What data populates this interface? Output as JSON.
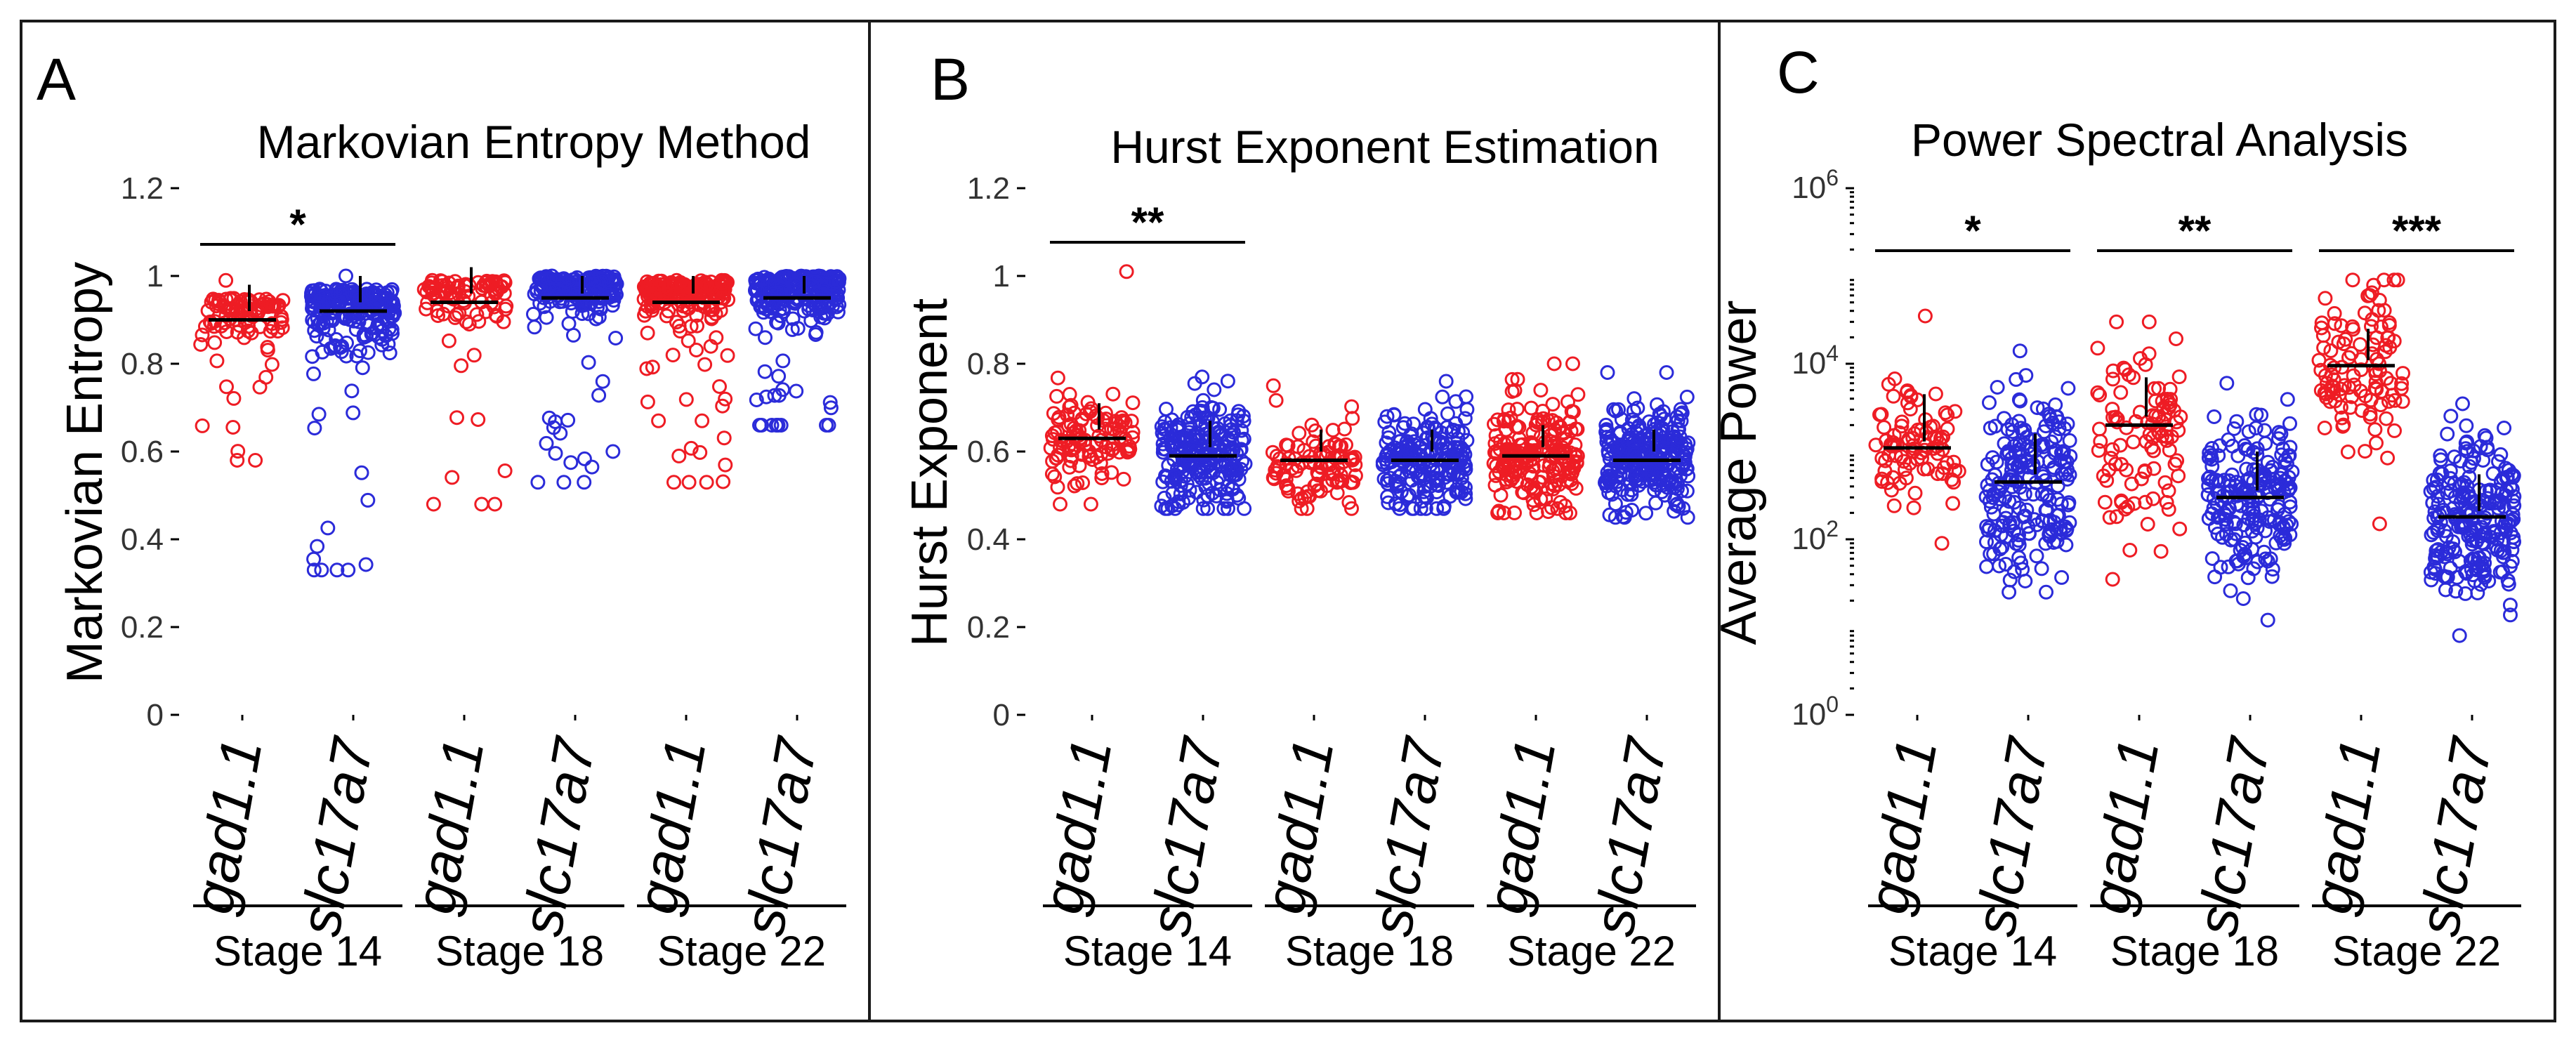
{
  "colors": {
    "red": "#ee1c24",
    "blue": "#2b2bd9"
  },
  "chart_data": [
    {
      "panel": "A",
      "type": "scatter",
      "title": "Markovian Entropy Method",
      "ylabel": "Markovian Entropy",
      "yscale": "linear",
      "ylim": [
        0,
        1.2
      ],
      "yticks": [
        0,
        0.2,
        0.4,
        0.6,
        0.8,
        1,
        1.2
      ],
      "ytick_labels": [
        "0",
        "0.2",
        "0.4",
        "0.6",
        "0.8",
        "1",
        "1.2"
      ],
      "groups": [
        {
          "category": "gad1.1",
          "stage": "Stage 14",
          "color": "red",
          "mean": 0.9,
          "err": [
            0.92,
            0.98
          ],
          "min": 0.58,
          "max": 0.99,
          "n": 95,
          "spread": 0.045
        },
        {
          "category": "slc17a7",
          "stage": "Stage 14",
          "color": "blue",
          "mean": 0.92,
          "err": [
            0.94,
            1.0
          ],
          "min": 0.33,
          "max": 1.0,
          "n": 230,
          "spread": 0.06
        },
        {
          "category": "gad1.1",
          "stage": "Stage 18",
          "color": "red",
          "mean": 0.94,
          "err": [
            0.96,
            1.02
          ],
          "min": 0.48,
          "max": 0.99,
          "n": 90,
          "spread": 0.045
        },
        {
          "category": "slc17a7",
          "stage": "Stage 18",
          "color": "blue",
          "mean": 0.95,
          "err": [
            0.96,
            1.0
          ],
          "min": 0.53,
          "max": 1.0,
          "n": 200,
          "spread": 0.04
        },
        {
          "category": "gad1.1",
          "stage": "Stage 22",
          "color": "red",
          "mean": 0.94,
          "err": [
            0.96,
            1.0
          ],
          "min": 0.53,
          "max": 0.99,
          "n": 200,
          "spread": 0.04
        },
        {
          "category": "slc17a7",
          "stage": "Stage 22",
          "color": "blue",
          "mean": 0.95,
          "err": [
            0.96,
            1.0
          ],
          "min": 0.66,
          "max": 1.0,
          "n": 230,
          "spread": 0.045
        }
      ],
      "significance": [
        {
          "from": 0,
          "to": 1,
          "label": "*"
        }
      ],
      "stages": [
        "Stage 14",
        "Stage 18",
        "Stage 22"
      ]
    },
    {
      "panel": "B",
      "type": "scatter",
      "title": "Hurst Exponent Estimation",
      "ylabel": "Hurst Exponent",
      "yscale": "linear",
      "ylim": [
        0,
        1.2
      ],
      "yticks": [
        0,
        0.2,
        0.4,
        0.6,
        0.8,
        1,
        1.2
      ],
      "ytick_labels": [
        "0",
        "0.2",
        "0.4",
        "0.6",
        "0.8",
        "1",
        "1.2"
      ],
      "groups": [
        {
          "category": "gad1.1",
          "stage": "Stage 14",
          "color": "red",
          "mean": 0.63,
          "err": [
            0.65,
            0.71
          ],
          "min": 0.48,
          "max": 1.01,
          "n": 110,
          "spread": 0.055
        },
        {
          "category": "slc17a7",
          "stage": "Stage 14",
          "color": "blue",
          "mean": 0.59,
          "err": [
            0.61,
            0.67
          ],
          "min": 0.47,
          "max": 0.77,
          "n": 230,
          "spread": 0.06
        },
        {
          "category": "gad1.1",
          "stage": "Stage 18",
          "color": "red",
          "mean": 0.58,
          "err": [
            0.6,
            0.65
          ],
          "min": 0.47,
          "max": 0.75,
          "n": 100,
          "spread": 0.055
        },
        {
          "category": "slc17a7",
          "stage": "Stage 18",
          "color": "blue",
          "mean": 0.58,
          "err": [
            0.6,
            0.65
          ],
          "min": 0.47,
          "max": 0.76,
          "n": 200,
          "spread": 0.055
        },
        {
          "category": "gad1.1",
          "stage": "Stage 22",
          "color": "red",
          "mean": 0.59,
          "err": [
            0.61,
            0.66
          ],
          "min": 0.46,
          "max": 0.8,
          "n": 200,
          "spread": 0.06
        },
        {
          "category": "slc17a7",
          "stage": "Stage 22",
          "color": "blue",
          "mean": 0.58,
          "err": [
            0.6,
            0.65
          ],
          "min": 0.45,
          "max": 0.78,
          "n": 260,
          "spread": 0.06
        }
      ],
      "significance": [
        {
          "from": 0,
          "to": 1,
          "label": "**"
        }
      ],
      "stages": [
        "Stage 14",
        "Stage 18",
        "Stage 22"
      ]
    },
    {
      "panel": "C",
      "type": "scatter",
      "title": "Power Spectral Analysis",
      "ylabel": "Average Power",
      "yscale": "log",
      "ylim": [
        1,
        1000000
      ],
      "yticks": [
        1,
        100,
        10000,
        1000000
      ],
      "ytick_labels": [
        [
          "10",
          "0"
        ],
        [
          "10",
          "2"
        ],
        [
          "10",
          "4"
        ],
        [
          "10",
          "6"
        ]
      ],
      "groups": [
        {
          "category": "gad1.1",
          "stage": "Stage 14",
          "color": "red",
          "mean": 1100,
          "err": [
            1300,
            4500
          ],
          "min": 90,
          "max": 35000,
          "n": 90,
          "spread": 0.35
        },
        {
          "category": "slc17a7",
          "stage": "Stage 14",
          "color": "blue",
          "mean": 450,
          "err": [
            550,
            1600
          ],
          "min": 25,
          "max": 14000,
          "n": 200,
          "spread": 0.5
        },
        {
          "category": "gad1.1",
          "stage": "Stage 18",
          "color": "red",
          "mean": 2000,
          "err": [
            2500,
            7000
          ],
          "min": 35,
          "max": 30000,
          "n": 100,
          "spread": 0.6
        },
        {
          "category": "slc17a7",
          "stage": "Stage 18",
          "color": "blue",
          "mean": 300,
          "err": [
            360,
            1000
          ],
          "min": 12,
          "max": 6000,
          "n": 200,
          "spread": 0.45
        },
        {
          "category": "gad1.1",
          "stage": "Stage 22",
          "color": "red",
          "mean": 9500,
          "err": [
            11000,
            25000
          ],
          "min": 150,
          "max": 90000,
          "n": 110,
          "spread": 0.5
        },
        {
          "category": "slc17a7",
          "stage": "Stage 22",
          "color": "blue",
          "mean": 180,
          "err": [
            210,
            550
          ],
          "min": 8,
          "max": 3500,
          "n": 230,
          "spread": 0.4
        }
      ],
      "significance": [
        {
          "from": 0,
          "to": 1,
          "label": "*"
        },
        {
          "from": 2,
          "to": 3,
          "label": "**"
        },
        {
          "from": 4,
          "to": 5,
          "label": "***"
        }
      ],
      "stages": [
        "Stage 14",
        "Stage 18",
        "Stage 22"
      ]
    }
  ]
}
